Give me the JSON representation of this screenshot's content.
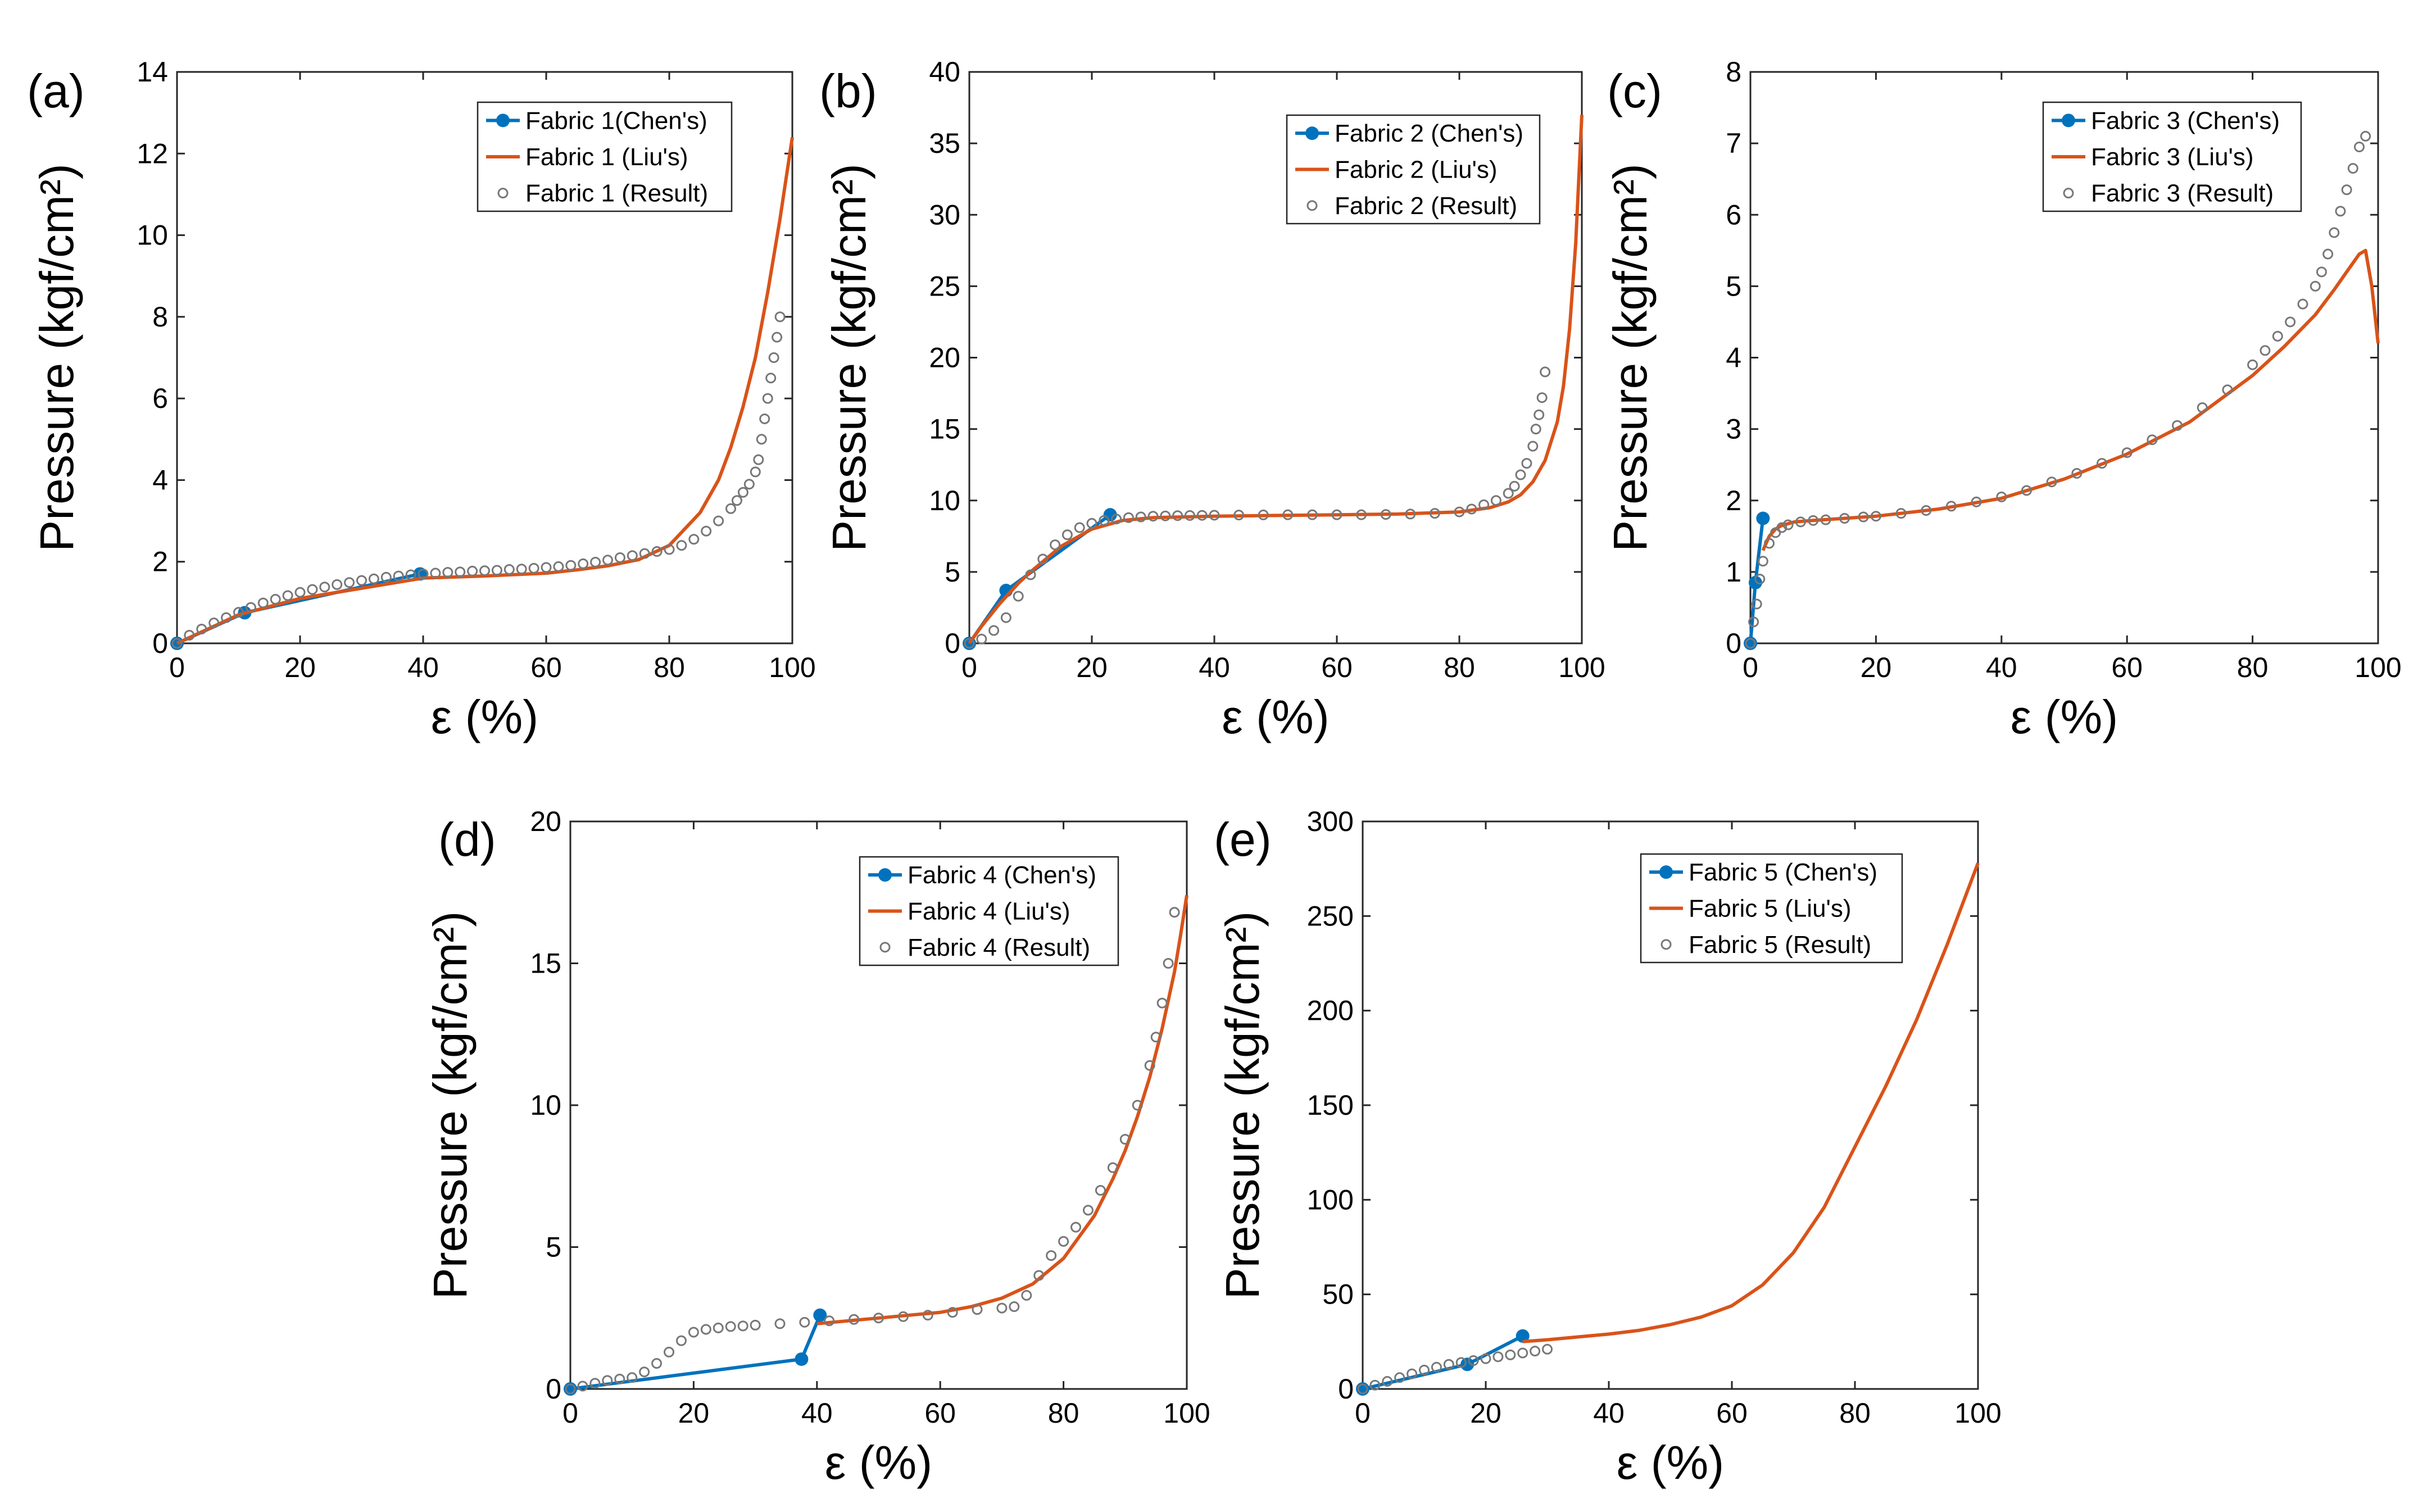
{
  "figure": {
    "panel_count": 5
  },
  "chart_data": [
    {
      "panel": "(a)",
      "type": "line",
      "xlabel": "ε (%)",
      "ylabel": "Pressure (kgf/cm²)",
      "xlim": [
        0,
        100
      ],
      "ylim": [
        0,
        14
      ],
      "xticks": [
        0,
        20,
        40,
        60,
        80,
        100
      ],
      "yticks": [
        0,
        2,
        4,
        6,
        8,
        10,
        12,
        14
      ],
      "legend_position": "top-right",
      "grid": false,
      "series": [
        {
          "name": "Fabric 1(Chen's)",
          "style": "line-marker",
          "color": "#0072BD",
          "x": [
            0,
            11,
            39.5
          ],
          "y": [
            0,
            0.75,
            1.7
          ]
        },
        {
          "name": "Fabric 1 (Liu's)",
          "style": "line",
          "color": "#D95319",
          "x": [
            0,
            5,
            10,
            20,
            30,
            40,
            50,
            60,
            65,
            70,
            75,
            80,
            85,
            88,
            90,
            92,
            94,
            96,
            98,
            99,
            100
          ],
          "y": [
            0,
            0.35,
            0.7,
            1.1,
            1.35,
            1.6,
            1.65,
            1.72,
            1.8,
            1.9,
            2.05,
            2.4,
            3.2,
            4.0,
            4.8,
            5.8,
            7.0,
            8.6,
            10.4,
            11.4,
            12.4
          ]
        },
        {
          "name": "Fabric 1 (Result)",
          "style": "open-circles",
          "color": "#777777",
          "x": [
            0,
            2,
            4,
            6,
            8,
            10,
            12,
            14,
            16,
            18,
            20,
            22,
            24,
            26,
            28,
            30,
            32,
            34,
            36,
            38,
            40,
            42,
            44,
            46,
            48,
            50,
            52,
            54,
            56,
            58,
            60,
            62,
            64,
            66,
            68,
            70,
            72,
            74,
            76,
            78,
            80,
            82,
            84,
            86,
            88,
            90,
            91,
            92,
            93,
            94,
            94.5,
            95,
            95.5,
            96,
            96.5,
            97,
            97.5,
            98
          ],
          "y": [
            0,
            0.2,
            0.35,
            0.5,
            0.63,
            0.76,
            0.88,
            0.99,
            1.08,
            1.17,
            1.25,
            1.32,
            1.38,
            1.44,
            1.49,
            1.54,
            1.58,
            1.62,
            1.65,
            1.68,
            1.7,
            1.72,
            1.74,
            1.75,
            1.77,
            1.78,
            1.79,
            1.81,
            1.82,
            1.84,
            1.86,
            1.88,
            1.91,
            1.95,
            1.99,
            2.04,
            2.1,
            2.15,
            2.2,
            2.25,
            2.3,
            2.4,
            2.55,
            2.75,
            3.0,
            3.3,
            3.5,
            3.7,
            3.9,
            4.2,
            4.5,
            5.0,
            5.5,
            6.0,
            6.5,
            7.0,
            7.5,
            8.0
          ]
        }
      ]
    },
    {
      "panel": "(b)",
      "type": "line",
      "xlabel": "ε (%)",
      "ylabel": "Pressure (kgf/cm²)",
      "xlim": [
        0,
        100
      ],
      "ylim": [
        0,
        40
      ],
      "xticks": [
        0,
        20,
        40,
        60,
        80,
        100
      ],
      "yticks": [
        0,
        5,
        10,
        15,
        20,
        25,
        30,
        35,
        40
      ],
      "legend_position": "top-right",
      "grid": false,
      "series": [
        {
          "name": "Fabric 2 (Chen's)",
          "style": "line-marker",
          "color": "#0072BD",
          "x": [
            0,
            6,
            23
          ],
          "y": [
            0,
            3.7,
            9.0
          ]
        },
        {
          "name": "Fabric 2 (Liu's)",
          "style": "line",
          "color": "#D95319",
          "x": [
            0,
            2,
            5,
            8,
            10,
            15,
            20,
            25,
            30,
            40,
            50,
            60,
            70,
            80,
            85,
            88,
            90,
            92,
            94,
            96,
            97,
            98,
            99,
            100
          ],
          "y": [
            0,
            1.2,
            2.8,
            4.2,
            5.0,
            6.8,
            8.0,
            8.6,
            8.8,
            8.9,
            8.95,
            9.0,
            9.05,
            9.2,
            9.5,
            9.9,
            10.4,
            11.3,
            12.8,
            15.5,
            18,
            22,
            28,
            37
          ]
        },
        {
          "name": "Fabric 2 (Result)",
          "style": "open-circles",
          "color": "#777777",
          "x": [
            0,
            2,
            4,
            6,
            8,
            10,
            12,
            14,
            16,
            18,
            20,
            22,
            24,
            26,
            28,
            30,
            32,
            34,
            36,
            38,
            40,
            44,
            48,
            52,
            56,
            60,
            64,
            68,
            72,
            76,
            80,
            82,
            84,
            86,
            88,
            89,
            90,
            91,
            92,
            92.5,
            93,
            93.5,
            94
          ],
          "y": [
            0,
            0.3,
            0.9,
            1.8,
            3.3,
            4.8,
            5.9,
            6.9,
            7.6,
            8.1,
            8.4,
            8.6,
            8.7,
            8.8,
            8.85,
            8.9,
            8.92,
            8.94,
            8.95,
            8.96,
            8.97,
            8.98,
            8.99,
            9.0,
            9.0,
            9.0,
            9.0,
            9.02,
            9.05,
            9.1,
            9.2,
            9.4,
            9.7,
            10.0,
            10.5,
            11.0,
            11.8,
            12.6,
            13.8,
            15.0,
            16.0,
            17.2,
            19.0
          ]
        }
      ]
    },
    {
      "panel": "(c)",
      "type": "line",
      "xlabel": "ε (%)",
      "ylabel": "Pressure (kgf/cm²)",
      "xlim": [
        0,
        100
      ],
      "ylim": [
        0,
        8
      ],
      "xticks": [
        0,
        20,
        40,
        60,
        80,
        100
      ],
      "yticks": [
        0,
        1,
        2,
        3,
        4,
        5,
        6,
        7,
        8
      ],
      "legend_position": "top-right",
      "grid": false,
      "series": [
        {
          "name": "Fabric 3 (Chen's)",
          "style": "line-marker",
          "color": "#0072BD",
          "x": [
            0,
            0.8,
            2
          ],
          "y": [
            0,
            0.85,
            1.75
          ]
        },
        {
          "name": "Fabric 3 (Liu's)",
          "style": "line",
          "color": "#D95319",
          "x": [
            2,
            3,
            4,
            5,
            7,
            10,
            15,
            20,
            30,
            40,
            50,
            60,
            70,
            80,
            85,
            90,
            93,
            95,
            97,
            98,
            99,
            100
          ],
          "y": [
            1.3,
            1.5,
            1.6,
            1.65,
            1.7,
            1.72,
            1.75,
            1.78,
            1.88,
            2.03,
            2.3,
            2.65,
            3.1,
            3.75,
            4.15,
            4.6,
            4.95,
            5.2,
            5.45,
            5.5,
            5.0,
            4.2
          ]
        },
        {
          "name": "Fabric 3 (Result)",
          "style": "open-circles",
          "color": "#777777",
          "x": [
            0,
            0.5,
            1,
            1.5,
            2,
            3,
            4,
            5,
            6,
            8,
            10,
            12,
            15,
            18,
            20,
            24,
            28,
            32,
            36,
            40,
            44,
            48,
            52,
            56,
            60,
            64,
            68,
            72,
            76,
            80,
            82,
            84,
            86,
            88,
            90,
            91,
            92,
            93,
            94,
            95,
            96,
            97,
            98
          ],
          "y": [
            0,
            0.3,
            0.55,
            0.9,
            1.15,
            1.4,
            1.55,
            1.62,
            1.66,
            1.7,
            1.72,
            1.73,
            1.75,
            1.77,
            1.78,
            1.82,
            1.86,
            1.92,
            1.98,
            2.05,
            2.14,
            2.26,
            2.38,
            2.52,
            2.67,
            2.85,
            3.05,
            3.3,
            3.55,
            3.9,
            4.1,
            4.3,
            4.5,
            4.75,
            5.0,
            5.2,
            5.45,
            5.75,
            6.05,
            6.35,
            6.65,
            6.95,
            7.1
          ]
        }
      ]
    },
    {
      "panel": "(d)",
      "type": "line",
      "xlabel": "ε (%)",
      "ylabel": "Pressure (kgf/cm²)",
      "xlim": [
        0,
        100
      ],
      "ylim": [
        0,
        20
      ],
      "xticks": [
        0,
        20,
        40,
        60,
        80,
        100
      ],
      "yticks": [
        0,
        5,
        10,
        15,
        20
      ],
      "legend_position": "top-right",
      "grid": false,
      "series": [
        {
          "name": "Fabric 4 (Chen's)",
          "style": "line-marker",
          "color": "#0072BD",
          "x": [
            0,
            37.5,
            40.5
          ],
          "y": [
            0,
            1.05,
            2.6
          ]
        },
        {
          "name": "Fabric 4 (Liu's)",
          "style": "line",
          "color": "#D95319",
          "x": [
            40,
            45,
            50,
            55,
            60,
            65,
            70,
            75,
            80,
            85,
            88,
            90,
            92,
            94,
            96,
            98,
            99,
            100
          ],
          "y": [
            2.3,
            2.4,
            2.5,
            2.6,
            2.7,
            2.9,
            3.2,
            3.7,
            4.6,
            6.1,
            7.4,
            8.4,
            9.6,
            11.0,
            12.7,
            14.7,
            16.0,
            17.4
          ]
        },
        {
          "name": "Fabric 4 (Result)",
          "style": "open-circles",
          "color": "#777777",
          "x": [
            0,
            2,
            4,
            6,
            8,
            10,
            12,
            14,
            16,
            18,
            20,
            22,
            24,
            26,
            28,
            30,
            34,
            38,
            42,
            46,
            50,
            54,
            58,
            62,
            66,
            70,
            72,
            74,
            76,
            78,
            80,
            82,
            84,
            86,
            88,
            90,
            92,
            94,
            95,
            96,
            97,
            98
          ],
          "y": [
            0,
            0.1,
            0.2,
            0.3,
            0.35,
            0.4,
            0.6,
            0.9,
            1.3,
            1.7,
            2.0,
            2.1,
            2.15,
            2.2,
            2.22,
            2.25,
            2.3,
            2.35,
            2.4,
            2.45,
            2.5,
            2.55,
            2.6,
            2.7,
            2.8,
            2.85,
            2.9,
            3.3,
            4.0,
            4.7,
            5.2,
            5.7,
            6.3,
            7.0,
            7.8,
            8.8,
            10.0,
            11.4,
            12.4,
            13.6,
            15.0,
            16.8
          ]
        }
      ]
    },
    {
      "panel": "(e)",
      "type": "line",
      "xlabel": "ε (%)",
      "ylabel": "Pressure (kgf/cm²)",
      "xlim": [
        0,
        100
      ],
      "ylim": [
        0,
        300
      ],
      "xticks": [
        0,
        20,
        40,
        60,
        80,
        100
      ],
      "yticks": [
        0,
        50,
        100,
        150,
        200,
        250,
        300
      ],
      "legend_position": "top-center",
      "grid": false,
      "series": [
        {
          "name": "Fabric 5 (Chen's)",
          "style": "line-marker",
          "color": "#0072BD",
          "x": [
            0,
            17,
            26
          ],
          "y": [
            0,
            13,
            28
          ]
        },
        {
          "name": "Fabric 5 (Liu's)",
          "style": "line",
          "color": "#D95319",
          "x": [
            26,
            30,
            35,
            40,
            45,
            50,
            55,
            60,
            65,
            70,
            75,
            80,
            85,
            90,
            95,
            100
          ],
          "y": [
            25,
            26,
            27.5,
            29,
            31,
            34,
            38,
            44,
            55,
            72,
            96,
            128,
            160,
            195,
            235,
            278
          ]
        },
        {
          "name": "Fabric 5 (Result)",
          "style": "open-circles",
          "color": "#777777",
          "x": [
            0,
            2,
            4,
            6,
            8,
            10,
            12,
            14,
            16,
            18,
            20,
            22,
            24,
            26,
            28,
            30
          ],
          "y": [
            0,
            2,
            4,
            6,
            8,
            10,
            11.5,
            13,
            14,
            15,
            16,
            17,
            18,
            19,
            20,
            21
          ]
        }
      ]
    }
  ]
}
